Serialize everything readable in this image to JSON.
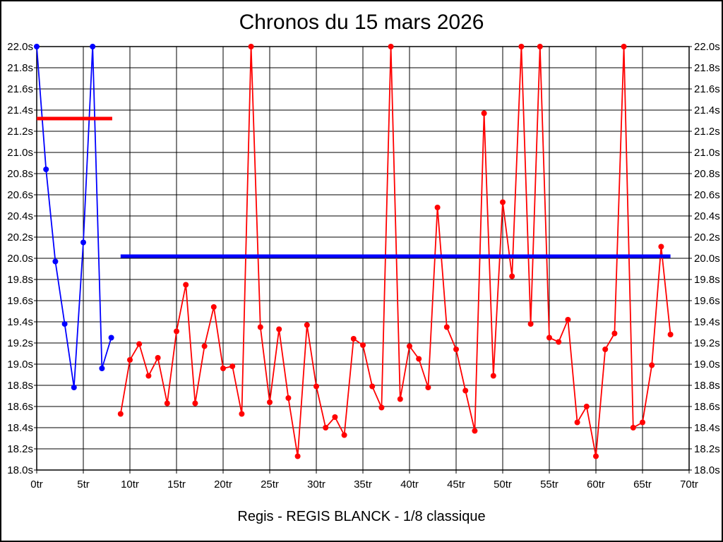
{
  "title": "Chronos du 15 mars 2026",
  "caption": "Regis - REGIS BLANCK - 1/8 classique",
  "chart_data": {
    "type": "line",
    "title": "Chronos du 15 mars 2026",
    "xlabel": "",
    "ylabel": "",
    "x_unit": "tr",
    "y_unit": "s",
    "xlim": [
      0,
      70
    ],
    "ylim": [
      18.0,
      22.0
    ],
    "grid": true,
    "legend": "none",
    "x_ticks": [
      "0tr",
      "5tr",
      "10tr",
      "15tr",
      "20tr",
      "25tr",
      "30tr",
      "35tr",
      "40tr",
      "45tr",
      "50tr",
      "55tr",
      "60tr",
      "65tr",
      "70tr"
    ],
    "y_ticks": [
      "22.0s",
      "21.8s",
      "21.6s",
      "21.4s",
      "21.2s",
      "21.0s",
      "20.8s",
      "20.6s",
      "20.4s",
      "20.2s",
      "20.0s",
      "19.8s",
      "19.6s",
      "19.4s",
      "19.2s",
      "19.0s",
      "18.8s",
      "18.6s",
      "18.4s",
      "18.2s",
      "18.0s"
    ],
    "series": [
      {
        "name": "session-1-blue",
        "color": "#0000ff",
        "start_lap": 0,
        "values": [
          22.0,
          20.84,
          19.97,
          19.38,
          18.78,
          20.15,
          22.0,
          18.96,
          19.25
        ]
      },
      {
        "name": "session-2-red",
        "color": "#ff0000",
        "start_lap": 9,
        "values": [
          18.53,
          19.04,
          19.19,
          18.89,
          19.06,
          18.63,
          19.31,
          19.75,
          18.63,
          19.17,
          19.54,
          18.96,
          18.98,
          18.53,
          22.0,
          19.35,
          18.64,
          19.33,
          18.68,
          18.13,
          19.37,
          18.79,
          18.4,
          18.5,
          18.33,
          19.24,
          19.18,
          18.79,
          18.59,
          22.0,
          18.67,
          19.17,
          19.05,
          18.78,
          20.48,
          19.35,
          19.14,
          18.75,
          18.37,
          21.37,
          18.89,
          20.53,
          19.83,
          22.0,
          19.38,
          22.0,
          19.25,
          19.21,
          19.42,
          18.45,
          18.6,
          18.13,
          19.14,
          19.29,
          22.0,
          18.4,
          18.45,
          18.99,
          20.11,
          19.28
        ]
      }
    ],
    "reference_lines": [
      {
        "name": "average-line-session-1",
        "color": "#ff0000",
        "value": 21.32,
        "from_lap": 0,
        "to_lap": 8.1
      },
      {
        "name": "average-line-session-2",
        "color": "#0000ff",
        "value": 20.02,
        "from_lap": 9,
        "to_lap": 68
      }
    ]
  }
}
